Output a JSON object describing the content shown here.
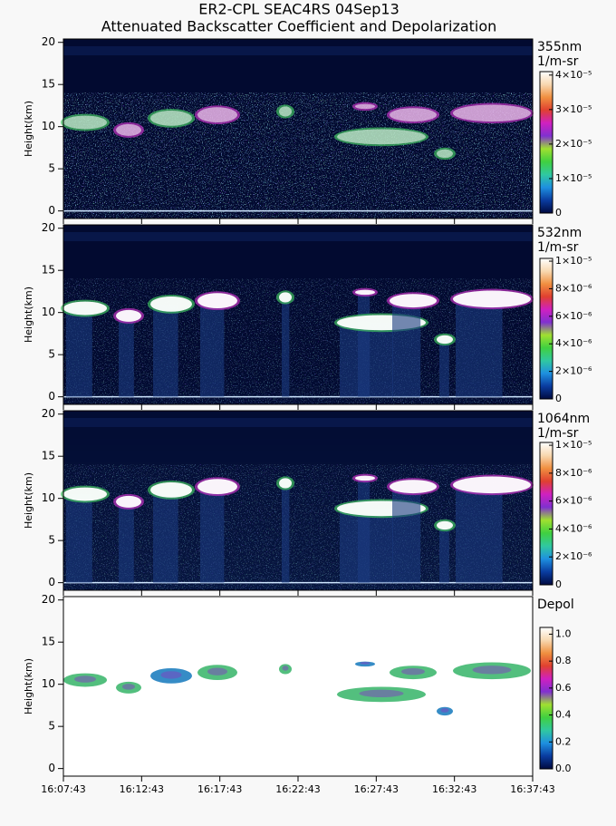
{
  "title": "ER2-CPL SEAC4RS 04Sep13",
  "subtitle": "Attenuated Backscatter Coefficient and Depolarization",
  "colormap": [
    "#000a40",
    "#0a3ca0",
    "#1e90e0",
    "#30c8a0",
    "#40d040",
    "#a0e030",
    "#8030d0",
    "#d020c0",
    "#e04030",
    "#f09040",
    "#f8d8b0",
    "#ffffff"
  ],
  "chart_data": [
    {
      "type": "heatmap",
      "label": "355nm",
      "unit": "1/m-sr",
      "ylabel": "Height(km)",
      "ylim": [
        -0.9,
        20.4
      ],
      "yticks": [
        0,
        5,
        10,
        15,
        20
      ],
      "zlim": [
        0,
        4.1e-05
      ],
      "zticks": [
        0,
        {
          "value": 1e-05,
          "label": "1×10⁻⁵"
        },
        {
          "value": 2e-05,
          "label": "2×10⁻⁵"
        },
        {
          "value": 3e-05,
          "label": "3×10⁻⁵"
        },
        {
          "value": 4e-05,
          "label": "4×10⁻⁵"
        }
      ]
    },
    {
      "type": "heatmap",
      "label": "532nm",
      "unit": "1/m-sr",
      "ylabel": "Height(km)",
      "ylim": [
        -0.9,
        20.4
      ],
      "yticks": [
        0,
        5,
        10,
        15,
        20
      ],
      "zlim": [
        0,
        1.02e-05
      ],
      "zticks": [
        0,
        {
          "value": 2e-06,
          "label": "2×10⁻⁶"
        },
        {
          "value": 4e-06,
          "label": "4×10⁻⁶"
        },
        {
          "value": 6e-06,
          "label": "6×10⁻⁶"
        },
        {
          "value": 8e-06,
          "label": "8×10⁻⁶"
        },
        {
          "value": 1e-05,
          "label": "1×10⁻⁵"
        }
      ]
    },
    {
      "type": "heatmap",
      "label": "1064nm",
      "unit": "1/m-sr",
      "ylabel": "Height(km)",
      "ylim": [
        -0.9,
        20.4
      ],
      "yticks": [
        0,
        5,
        10,
        15,
        20
      ],
      "zlim": [
        0,
        1.02e-05
      ],
      "zticks": [
        0,
        {
          "value": 2e-06,
          "label": "2×10⁻⁶"
        },
        {
          "value": 4e-06,
          "label": "4×10⁻⁶"
        },
        {
          "value": 6e-06,
          "label": "6×10⁻⁶"
        },
        {
          "value": 8e-06,
          "label": "8×10⁻⁶"
        },
        {
          "value": 1e-05,
          "label": "1×10⁻⁵"
        }
      ]
    },
    {
      "type": "depol",
      "label": "Depol",
      "ylabel": "Height(km)",
      "ylim": [
        -0.9,
        20.4
      ],
      "yticks": [
        0,
        5,
        10,
        15,
        20
      ],
      "zlim": [
        0,
        1.05
      ],
      "zticks": [
        {
          "value": 0,
          "label": "0.0"
        },
        0.2,
        0.4,
        0.6,
        0.8,
        {
          "value": 1,
          "label": "1.0"
        }
      ],
      "categories": [
        "16:07:43",
        "16:12:43",
        "16:17:43",
        "16:22:43",
        "16:27:43",
        "16:32:43",
        "16:37:43"
      ]
    }
  ]
}
